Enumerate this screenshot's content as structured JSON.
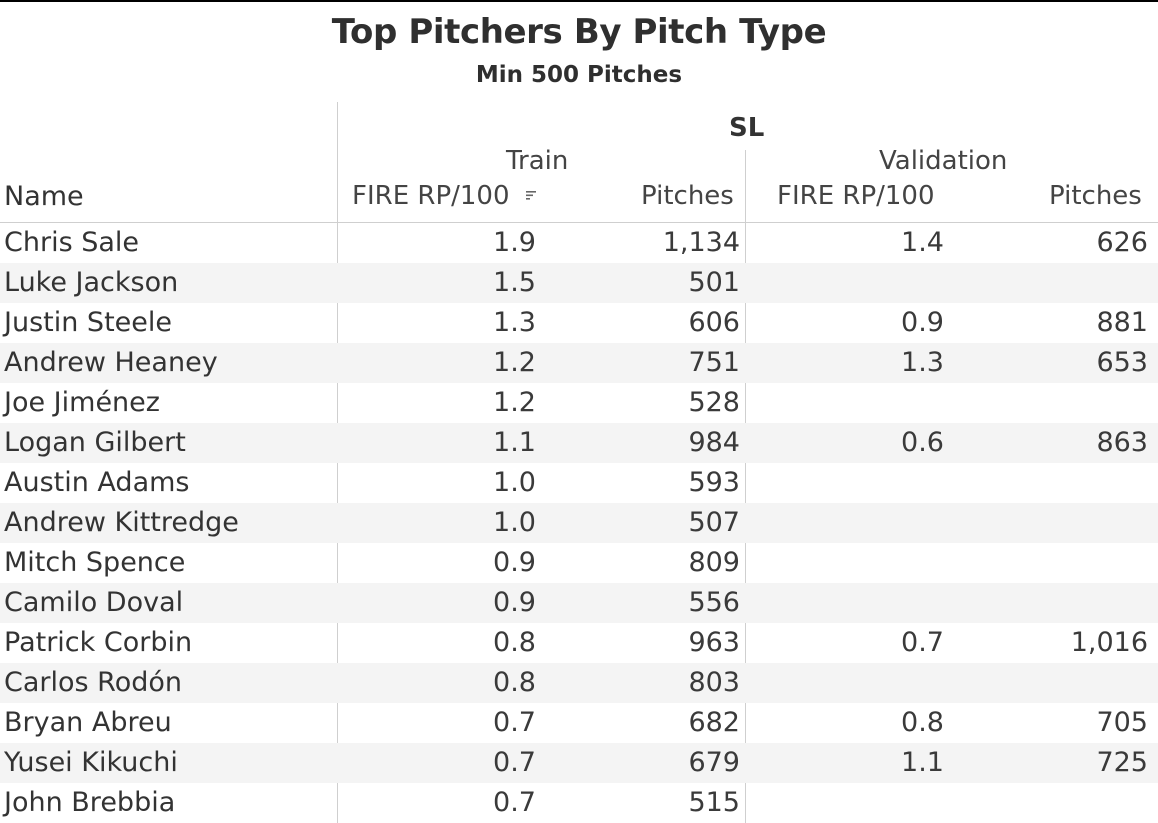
{
  "title": "Top Pitchers By Pitch Type",
  "subtitle": "Min 500 Pitches",
  "header": {
    "pitch_type": "SL",
    "group_train": "Train",
    "group_validation": "Validation",
    "col_name": "Name",
    "col_train_fire": "FIRE RP/100",
    "col_train_pitches": "Pitches",
    "col_val_fire": "FIRE RP/100",
    "col_val_pitches": "Pitches",
    "sort_icon": "sort-descending-icon"
  },
  "colors": {
    "text": "#333333",
    "band": "#f4f4f4",
    "divider": "#cfcfcf"
  },
  "chart_data": {
    "type": "table",
    "title": "Top Pitchers By Pitch Type",
    "subtitle": "Min 500 Pitches",
    "pitch_type": "SL",
    "columns": [
      "Name",
      "Train FIRE RP/100",
      "Train Pitches",
      "Validation FIRE RP/100",
      "Validation Pitches"
    ],
    "sorted_by": "Train FIRE RP/100 (descending)",
    "rows": [
      {
        "name": "Chris Sale",
        "train_fire": "1.9",
        "train_pitches": "1,134",
        "val_fire": "1.4",
        "val_pitches": "626"
      },
      {
        "name": "Luke Jackson",
        "train_fire": "1.5",
        "train_pitches": "501",
        "val_fire": "",
        "val_pitches": ""
      },
      {
        "name": "Justin Steele",
        "train_fire": "1.3",
        "train_pitches": "606",
        "val_fire": "0.9",
        "val_pitches": "881"
      },
      {
        "name": "Andrew Heaney",
        "train_fire": "1.2",
        "train_pitches": "751",
        "val_fire": "1.3",
        "val_pitches": "653"
      },
      {
        "name": "Joe Jiménez",
        "train_fire": "1.2",
        "train_pitches": "528",
        "val_fire": "",
        "val_pitches": ""
      },
      {
        "name": "Logan Gilbert",
        "train_fire": "1.1",
        "train_pitches": "984",
        "val_fire": "0.6",
        "val_pitches": "863"
      },
      {
        "name": "Austin Adams",
        "train_fire": "1.0",
        "train_pitches": "593",
        "val_fire": "",
        "val_pitches": ""
      },
      {
        "name": "Andrew Kittredge",
        "train_fire": "1.0",
        "train_pitches": "507",
        "val_fire": "",
        "val_pitches": ""
      },
      {
        "name": "Mitch Spence",
        "train_fire": "0.9",
        "train_pitches": "809",
        "val_fire": "",
        "val_pitches": ""
      },
      {
        "name": "Camilo Doval",
        "train_fire": "0.9",
        "train_pitches": "556",
        "val_fire": "",
        "val_pitches": ""
      },
      {
        "name": "Patrick Corbin",
        "train_fire": "0.8",
        "train_pitches": "963",
        "val_fire": "0.7",
        "val_pitches": "1,016"
      },
      {
        "name": "Carlos Rodón",
        "train_fire": "0.8",
        "train_pitches": "803",
        "val_fire": "",
        "val_pitches": ""
      },
      {
        "name": "Bryan Abreu",
        "train_fire": "0.7",
        "train_pitches": "682",
        "val_fire": "0.8",
        "val_pitches": "705"
      },
      {
        "name": "Yusei Kikuchi",
        "train_fire": "0.7",
        "train_pitches": "679",
        "val_fire": "1.1",
        "val_pitches": "725"
      },
      {
        "name": "John Brebbia",
        "train_fire": "0.7",
        "train_pitches": "515",
        "val_fire": "",
        "val_pitches": ""
      }
    ]
  }
}
